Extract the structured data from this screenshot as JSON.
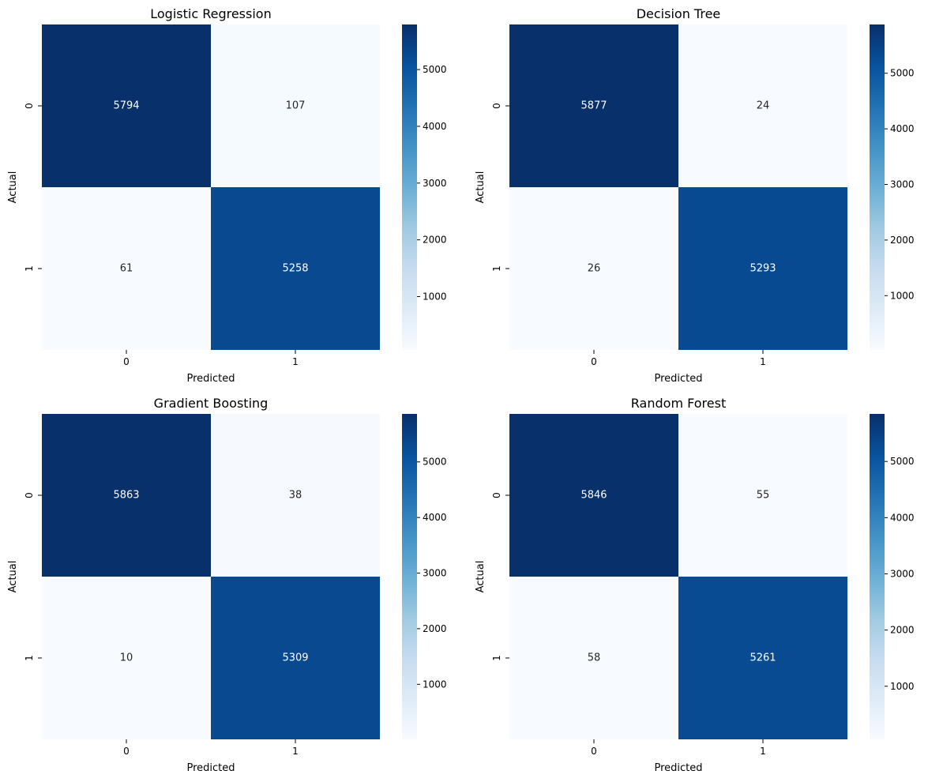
{
  "chart_data": [
    {
      "type": "heatmap",
      "title": "Logistic Regression",
      "xlabel": "Predicted",
      "ylabel": "Actual",
      "x_categories": [
        "0",
        "1"
      ],
      "y_categories": [
        "0",
        "1"
      ],
      "values": [
        [
          5794,
          107
        ],
        [
          61,
          5258
        ]
      ],
      "colormap": "Blues",
      "colorbar_ticks": [
        "1000",
        "2000",
        "3000",
        "4000",
        "5000"
      ]
    },
    {
      "type": "heatmap",
      "title": "Decision Tree",
      "xlabel": "Predicted",
      "ylabel": "Actual",
      "x_categories": [
        "0",
        "1"
      ],
      "y_categories": [
        "0",
        "1"
      ],
      "values": [
        [
          5877,
          24
        ],
        [
          26,
          5293
        ]
      ],
      "colormap": "Blues",
      "colorbar_ticks": [
        "1000",
        "2000",
        "3000",
        "4000",
        "5000"
      ]
    },
    {
      "type": "heatmap",
      "title": "Gradient Boosting",
      "xlabel": "Predicted",
      "ylabel": "Actual",
      "x_categories": [
        "0",
        "1"
      ],
      "y_categories": [
        "0",
        "1"
      ],
      "values": [
        [
          5863,
          38
        ],
        [
          10,
          5309
        ]
      ],
      "colormap": "Blues",
      "colorbar_ticks": [
        "1000",
        "2000",
        "3000",
        "4000",
        "5000"
      ]
    },
    {
      "type": "heatmap",
      "title": "Random Forest",
      "xlabel": "Predicted",
      "ylabel": "Actual",
      "x_categories": [
        "0",
        "1"
      ],
      "y_categories": [
        "0",
        "1"
      ],
      "values": [
        [
          5846,
          55
        ],
        [
          58,
          5261
        ]
      ],
      "colormap": "Blues",
      "colorbar_ticks": [
        "1000",
        "2000",
        "3000",
        "4000",
        "5000"
      ]
    }
  ]
}
